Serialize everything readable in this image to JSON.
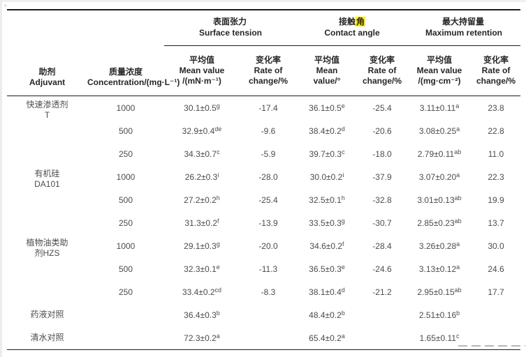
{
  "theme": {
    "highlight": "#ffee00",
    "rule_color": "#1c1c1c",
    "header_text": "#262626",
    "body_text": "#4c4c4c"
  },
  "artifacts": {
    "corner_mark": "×"
  },
  "table": {
    "headers": {
      "adjuvant": {
        "zh": "助剂",
        "en": "Adjuvant"
      },
      "concentration": {
        "zh": "质量浓度",
        "en": "Concentration/(mg·L⁻¹)"
      },
      "groups": [
        {
          "zh_before": "表面张力",
          "zh_highlight": "",
          "zh_after": "",
          "en": "Surface tension",
          "sub_mean": [
            "平均值",
            "Mean value",
            "/(mN·m⁻¹)"
          ],
          "sub_rate": [
            "变化率",
            "Rate of",
            "change/%"
          ]
        },
        {
          "zh_before": "接触",
          "zh_highlight": "角",
          "zh_after": "",
          "en": "Contact angle",
          "sub_mean": [
            "平均值",
            "Mean",
            "value/°"
          ],
          "sub_rate": [
            "变化率",
            "Rate of",
            "change/%"
          ]
        },
        {
          "zh_before": "最大持留量",
          "zh_highlight": "",
          "zh_after": "",
          "en": "Maximum retention",
          "sub_mean": [
            "平均值",
            "Mean value",
            "/(mg·cm⁻²)"
          ],
          "sub_rate": [
            "变化率",
            "Rate of",
            "change/%"
          ]
        }
      ]
    },
    "rows": [
      {
        "adjuvant": [
          "快速渗透剂",
          "T"
        ],
        "span": 3,
        "conc": "1000",
        "st": {
          "v": "30.1±0.5",
          "s": "g"
        },
        "st_rate": "-17.4",
        "ca": {
          "v": "36.1±0.5",
          "s": "e"
        },
        "ca_rate": "-25.4",
        "mr": {
          "v": "3.11±0.11",
          "s": "a"
        },
        "mr_rate": "23.8"
      },
      {
        "conc": "500",
        "st": {
          "v": "32.9±0.4",
          "s": "de"
        },
        "st_rate": "-9.6",
        "ca": {
          "v": "38.4±0.2",
          "s": "d"
        },
        "ca_rate": "-20.6",
        "mr": {
          "v": "3.08±0.25",
          "s": "a"
        },
        "mr_rate": "22.8"
      },
      {
        "conc": "250",
        "st": {
          "v": "34.3±0.7",
          "s": "c"
        },
        "st_rate": "-5.9",
        "ca": {
          "v": "39.7±0.3",
          "s": "c"
        },
        "ca_rate": "-18.0",
        "mr": {
          "v": "2.79±0.11",
          "s": "ab"
        },
        "mr_rate": "11.0"
      },
      {
        "adjuvant": [
          "有机硅",
          "DA101"
        ],
        "span": 3,
        "conc": "1000",
        "st": {
          "v": "26.2±0.3",
          "s": "i"
        },
        "st_rate": "-28.0",
        "ca": {
          "v": "30.0±0.2",
          "s": "i"
        },
        "ca_rate": "-37.9",
        "mr": {
          "v": "3.07±0.20",
          "s": "a"
        },
        "mr_rate": "22.3"
      },
      {
        "conc": "500",
        "st": {
          "v": "27.2±0.2",
          "s": "h"
        },
        "st_rate": "-25.4",
        "ca": {
          "v": "32.5±0.1",
          "s": "h"
        },
        "ca_rate": "-32.8",
        "mr": {
          "v": "3.01±0.13",
          "s": "ab"
        },
        "mr_rate": "19.9"
      },
      {
        "conc": "250",
        "st": {
          "v": "31.3±0.2",
          "s": "f"
        },
        "st_rate": "-13.9",
        "ca": {
          "v": "33.5±0.3",
          "s": "g"
        },
        "ca_rate": "-30.7",
        "mr": {
          "v": "2.85±0.23",
          "s": "ab"
        },
        "mr_rate": "13.7"
      },
      {
        "adjuvant": [
          "植物油类助",
          "剂HZS"
        ],
        "span": 3,
        "conc": "1000",
        "st": {
          "v": "29.1±0.3",
          "s": "g"
        },
        "st_rate": "-20.0",
        "ca": {
          "v": "34.6±0.2",
          "s": "f"
        },
        "ca_rate": "-28.4",
        "mr": {
          "v": "3.26±0.28",
          "s": "a"
        },
        "mr_rate": "30.0"
      },
      {
        "conc": "500",
        "st": {
          "v": "32.3±0.1",
          "s": "e"
        },
        "st_rate": "-11.3",
        "ca": {
          "v": "36.5±0.3",
          "s": "e"
        },
        "ca_rate": "-24.6",
        "mr": {
          "v": "3.13±0.12",
          "s": "a"
        },
        "mr_rate": "24.6"
      },
      {
        "conc": "250",
        "st": {
          "v": "33.4±0.2",
          "s": "cd"
        },
        "st_rate": "-8.3",
        "ca": {
          "v": "38.1±0.4",
          "s": "d"
        },
        "ca_rate": "-21.2",
        "mr": {
          "v": "2.95±0.15",
          "s": "ab"
        },
        "mr_rate": "17.7"
      },
      {
        "adjuvant": [
          "药液对照"
        ],
        "span": 1,
        "control": true,
        "conc": "",
        "st": {
          "v": "36.4±0.3",
          "s": "b"
        },
        "st_rate": "",
        "ca": {
          "v": "48.4±0.2",
          "s": "b"
        },
        "ca_rate": "",
        "mr": {
          "v": "2.51±0.16",
          "s": "b"
        },
        "mr_rate": ""
      },
      {
        "adjuvant": [
          "清水对照"
        ],
        "span": 1,
        "control": true,
        "conc": "",
        "st": {
          "v": "72.3±0.2",
          "s": "a"
        },
        "st_rate": "",
        "ca": {
          "v": "65.4±0.2",
          "s": "a"
        },
        "ca_rate": "",
        "mr": {
          "v": "1.65±0.11",
          "s": "c"
        },
        "mr_rate": ""
      }
    ]
  }
}
